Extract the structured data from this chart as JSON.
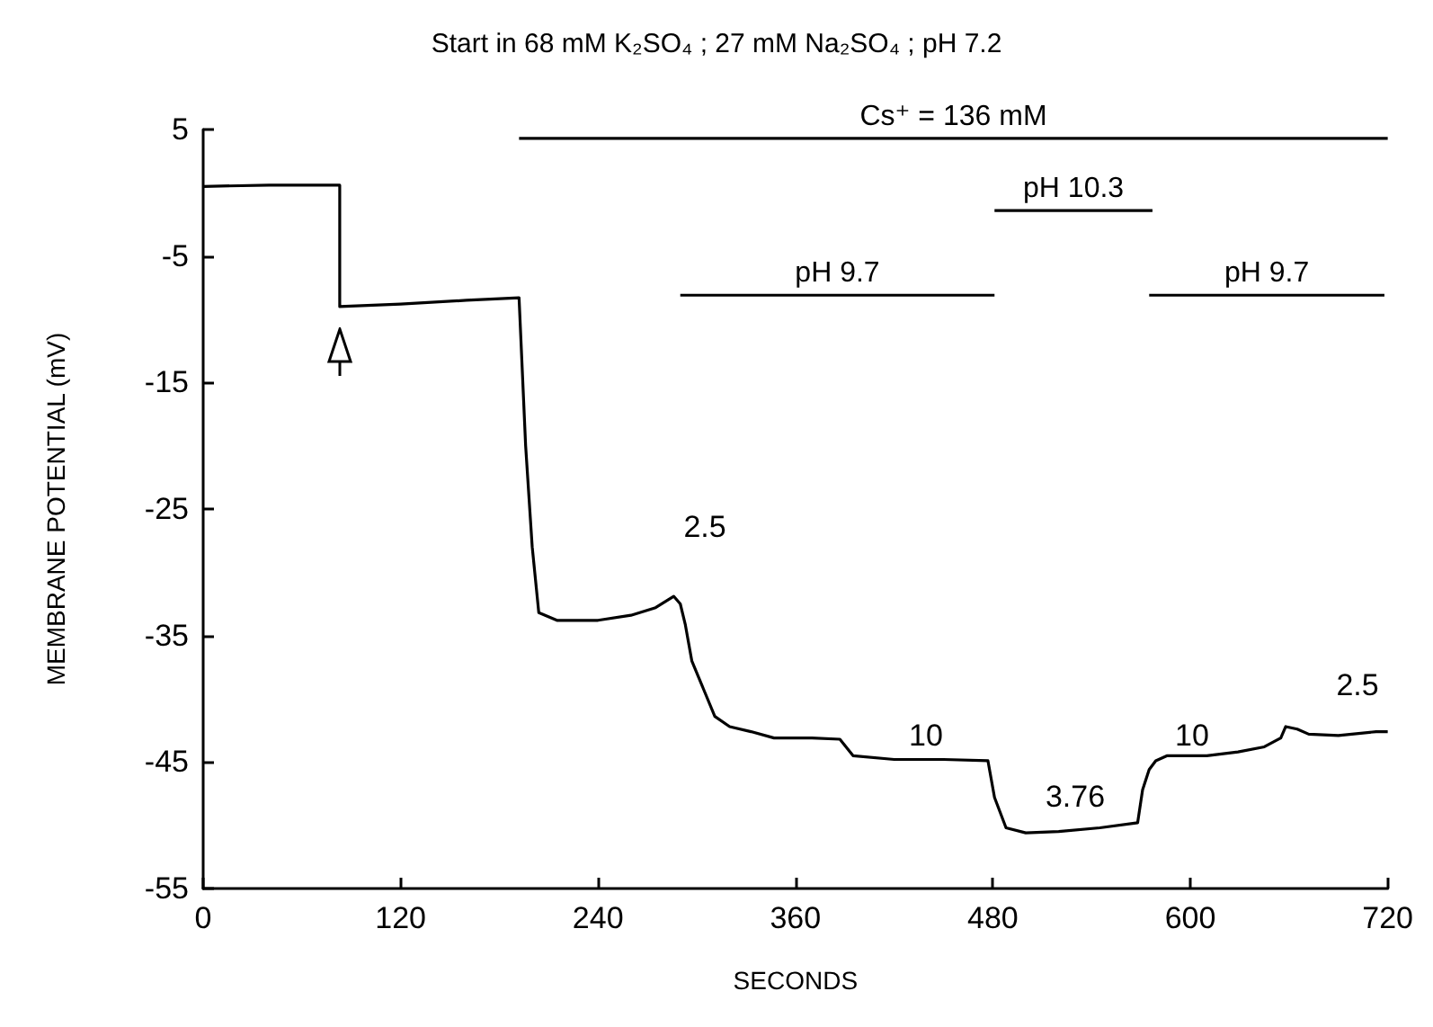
{
  "chart_data": {
    "type": "line",
    "title": "Start in 68 mM K₂SO₄ ; 27 mM Na₂SO₄ ; pH 7.2",
    "xlabel": "SECONDS",
    "ylabel": "MEMBRANE POTENTIAL (mV)",
    "xlim": [
      0,
      720
    ],
    "xticks": [
      0,
      120,
      240,
      360,
      480,
      600,
      720
    ],
    "ylim": [
      -55,
      5
    ],
    "yticks": [
      5,
      -5,
      -15,
      -25,
      -35,
      -45,
      -55
    ],
    "marker": "none",
    "series": [
      {
        "color": "#000000",
        "x": [
          0,
          40,
          83,
          83,
          120,
          160,
          192,
          196,
          200,
          204,
          215,
          240,
          260,
          275,
          286,
          290,
          293,
          297,
          304,
          311,
          320,
          333,
          347,
          370,
          387,
          395,
          420,
          450,
          477,
          481,
          488,
          500,
          520,
          545,
          568,
          571,
          575,
          579,
          586,
          610,
          629,
          645,
          655,
          658,
          665,
          672,
          690,
          713,
          720
        ],
        "values": [
          0.5,
          0.6,
          0.6,
          -9.0,
          -8.8,
          -8.5,
          -8.3,
          -20,
          -28,
          -33.2,
          -33.8,
          -33.8,
          -33.4,
          -32.8,
          -31.9,
          -32.5,
          -34.1,
          -37,
          -39.2,
          -41.4,
          -42.2,
          -42.6,
          -43.1,
          -43.1,
          -43.2,
          -44.5,
          -44.8,
          -44.8,
          -44.9,
          -47.8,
          -50.2,
          -50.6,
          -50.5,
          -50.2,
          -49.8,
          -47.2,
          -45.6,
          -44.9,
          -44.5,
          -44.5,
          -44.2,
          -43.8,
          -43.1,
          -42.2,
          -42.4,
          -42.8,
          -42.9,
          -42.6,
          -42.6
        ]
      },
      {
        "name": "Cs⁺ = 136 mM",
        "color": "#000000",
        "x": [
          192,
          720
        ],
        "values": [
          4.3,
          4.3
        ]
      },
      {
        "name": "pH 10.3",
        "color": "#000000",
        "x": [
          481,
          577
        ],
        "values": [
          -1.4,
          -1.4
        ]
      },
      {
        "name": "pH 9.7",
        "color": "#000000",
        "x": [
          290,
          481
        ],
        "values": [
          -8.1,
          -8.1
        ]
      },
      {
        "name": "pH 9.7",
        "color": "#000000",
        "x": [
          575,
          718
        ],
        "values": [
          -8.1,
          -8.1
        ]
      }
    ],
    "annotations": [
      "2.5",
      "10",
      "3.76",
      "10",
      "2.5"
    ]
  }
}
